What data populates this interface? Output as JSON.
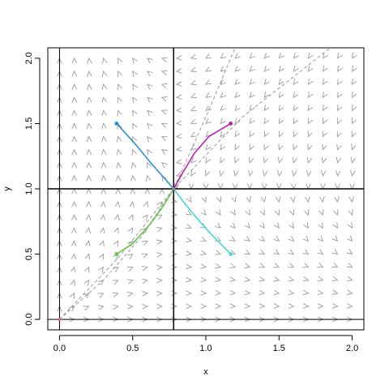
{
  "chart_data": {
    "type": "phase-portrait",
    "title": "",
    "xlabel": "x",
    "ylabel": "y",
    "xlim": [
      -0.08,
      2.08
    ],
    "ylim": [
      -0.08,
      2.08
    ],
    "x_ticks": [
      0.0,
      0.5,
      1.0,
      1.5,
      2.0
    ],
    "x_tick_labels": [
      "0.0",
      "0.5",
      "1.0",
      "1.5",
      "2.0"
    ],
    "y_ticks": [
      0.0,
      0.5,
      1.0,
      1.5,
      2.0
    ],
    "y_tick_labels": [
      "0.0",
      "0.5",
      "1.0",
      "1.5",
      "2.0"
    ],
    "nullclines": {
      "x": [
        0.0,
        0.78
      ],
      "y": [
        0.0,
        1.0
      ]
    },
    "equilibria": [
      {
        "x": 0.0,
        "y": 0.0,
        "color": "#e8608a"
      },
      {
        "x": 0.78,
        "y": 1.0,
        "color": "#888888"
      }
    ],
    "vector_field": {
      "x_start": 0.0,
      "x_end": 2.0,
      "y_start": 0.0,
      "y_end": 2.0,
      "step": 0.1,
      "color": "#999999"
    },
    "separatrices": [
      {
        "points": [
          [
            0.0,
            0.0
          ],
          [
            0.3,
            0.3
          ],
          [
            0.55,
            0.62
          ],
          [
            0.78,
            1.0
          ],
          [
            1.0,
            1.55
          ],
          [
            1.2,
            2.08
          ]
        ]
      },
      {
        "points": [
          [
            0.0,
            0.0
          ],
          [
            0.4,
            0.47
          ],
          [
            0.78,
            1.0
          ],
          [
            1.25,
            1.55
          ],
          [
            1.85,
            2.08
          ]
        ]
      }
    ],
    "trajectories": [
      {
        "name": "blue",
        "color": "#2b8fd1",
        "start": [
          0.39,
          1.5
        ],
        "points": [
          [
            0.39,
            1.5
          ],
          [
            0.52,
            1.34
          ],
          [
            0.63,
            1.19
          ],
          [
            0.71,
            1.09
          ],
          [
            0.78,
            1.0
          ]
        ]
      },
      {
        "name": "magenta",
        "color": "#c21fb3",
        "start": [
          1.17,
          1.5
        ],
        "points": [
          [
            1.17,
            1.5
          ],
          [
            1.02,
            1.4
          ],
          [
            0.92,
            1.27
          ],
          [
            0.84,
            1.12
          ],
          [
            0.78,
            1.0
          ]
        ]
      },
      {
        "name": "green",
        "color": "#66c24e",
        "start": [
          0.39,
          0.5
        ],
        "points": [
          [
            0.39,
            0.5
          ],
          [
            0.5,
            0.58
          ],
          [
            0.62,
            0.73
          ],
          [
            0.71,
            0.87
          ],
          [
            0.78,
            1.0
          ]
        ]
      },
      {
        "name": "cyan",
        "color": "#45d6d6",
        "start": [
          1.17,
          0.5
        ],
        "points": [
          [
            1.17,
            0.5
          ],
          [
            1.03,
            0.66
          ],
          [
            0.92,
            0.8
          ],
          [
            0.84,
            0.91
          ],
          [
            0.78,
            1.0
          ]
        ]
      }
    ]
  }
}
